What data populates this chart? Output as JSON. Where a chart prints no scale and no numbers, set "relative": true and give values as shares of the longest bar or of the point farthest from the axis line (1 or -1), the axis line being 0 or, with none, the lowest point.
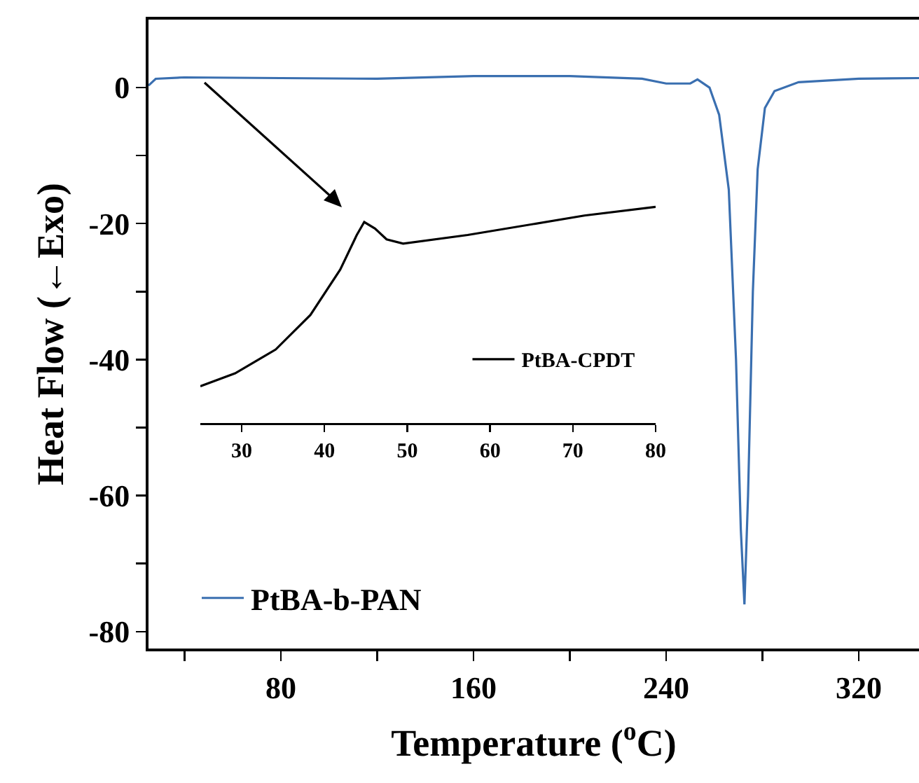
{
  "chart_data": [
    {
      "type": "line",
      "xlabel": "Temperature ($^{o}$C)",
      "ylabel": "Heat Flow (←Exo)",
      "legend": "bottom left",
      "xlim": [
        25,
        345
      ],
      "xticks": [
        {
          "value": 40,
          "label": null
        },
        80,
        {
          "value": 120,
          "label": null
        },
        160,
        {
          "value": 200,
          "label": null
        },
        240,
        {
          "value": 280,
          "label": null
        },
        320
      ],
      "ylim": [
        -82.5,
        10
      ],
      "yticks": [
        -80,
        {
          "value": -70,
          "label": null
        },
        -60,
        {
          "value": -50,
          "label": null
        },
        -40,
        {
          "value": -30,
          "label": null
        },
        -20,
        {
          "value": -10,
          "label": null
        },
        0
      ],
      "series": [
        {
          "name": "PtBA-b-PAN",
          "color": "#3a6fb0",
          "x": [
            25,
            28,
            40,
            80,
            120,
            160,
            200,
            230,
            240,
            250,
            253,
            258,
            262,
            266,
            269,
            271,
            272.5,
            274,
            276,
            278,
            281,
            285,
            295,
            320,
            345
          ],
          "values": [
            0.3,
            1.3,
            1.5,
            1.4,
            1.3,
            1.7,
            1.7,
            1.3,
            0.6,
            0.6,
            1.2,
            0,
            -4,
            -15,
            -40,
            -65,
            -76,
            -60,
            -30,
            -12,
            -3,
            -0.5,
            0.8,
            1.3,
            1.4
          ]
        }
      ]
    },
    {
      "type": "line",
      "relative": true,
      "tick_labels": "x",
      "legend": "bottom right",
      "xlim": [
        25,
        80
      ],
      "xticks": [
        30,
        40,
        50,
        60,
        70,
        80
      ],
      "series": [
        {
          "name": "PtBA-CPDT",
          "color": "#000000",
          "x": [
            25,
            29.2,
            34.1,
            38.3,
            41.9,
            43.9,
            44.8,
            46.1,
            47.5,
            49.5,
            57.3,
            71.4,
            80
          ],
          "values": [
            0.17,
            0.23,
            0.34,
            0.5,
            0.71,
            0.87,
            0.93,
            0.9,
            0.85,
            0.83,
            0.87,
            0.96,
            1
          ]
        }
      ]
    }
  ]
}
